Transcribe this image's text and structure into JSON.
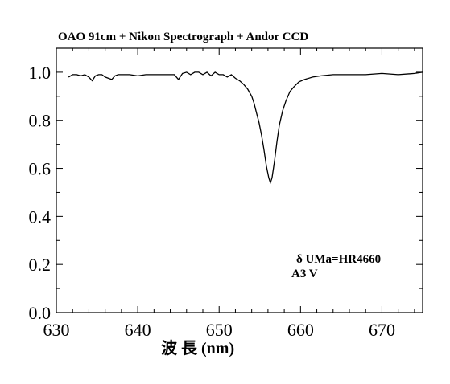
{
  "chart_data": {
    "type": "line",
    "title": "OAO 91cm + Nikon Spectrograph + Andor CCD",
    "xlabel": "波 長 (nm)",
    "ylabel": "",
    "xlim": [
      630,
      675
    ],
    "ylim": [
      0.0,
      1.1
    ],
    "x_ticks": [
      "630",
      "640",
      "650",
      "660",
      "670"
    ],
    "y_ticks": [
      "0.0",
      "0.2",
      "0.4",
      "0.6",
      "0.8",
      "1.0"
    ],
    "annotation_lines": [
      "δ UMa=HR4660",
      "A3 V"
    ],
    "grid": false,
    "line_color": "#000000",
    "series": [
      {
        "x": [
          631.5,
          632.0,
          632.5,
          633.0,
          633.5,
          634.0,
          634.4,
          634.8,
          635.2,
          635.6,
          636.0,
          636.4,
          636.8,
          637.2,
          637.6,
          638.0,
          639.0,
          640.0,
          641.0,
          642.0,
          643.0,
          644.0,
          644.5,
          645.0,
          645.5,
          646.0,
          646.5,
          647.0,
          647.5,
          648.0,
          648.5,
          649.0,
          649.5,
          650.0,
          650.5,
          651.0,
          651.5,
          652.0,
          652.5,
          653.0,
          653.5,
          654.0,
          654.3,
          654.6,
          654.9,
          655.2,
          655.5,
          655.8,
          656.1,
          656.3,
          656.5,
          656.8,
          657.1,
          657.4,
          657.8,
          658.2,
          658.7,
          659.2,
          659.8,
          660.5,
          661.5,
          662.5,
          664.0,
          666.0,
          668.0,
          670.0,
          672.0,
          674.0,
          675.0
        ],
        "y": [
          0.98,
          0.99,
          0.99,
          0.985,
          0.99,
          0.98,
          0.965,
          0.985,
          0.99,
          0.99,
          0.98,
          0.975,
          0.97,
          0.985,
          0.99,
          0.99,
          0.99,
          0.985,
          0.99,
          0.99,
          0.99,
          0.99,
          0.99,
          0.97,
          0.995,
          1.0,
          0.99,
          1.0,
          1.0,
          0.99,
          1.0,
          0.985,
          1.0,
          0.99,
          0.99,
          0.98,
          0.99,
          0.975,
          0.965,
          0.95,
          0.93,
          0.9,
          0.87,
          0.83,
          0.79,
          0.74,
          0.68,
          0.61,
          0.56,
          0.54,
          0.56,
          0.63,
          0.71,
          0.78,
          0.84,
          0.88,
          0.92,
          0.94,
          0.96,
          0.97,
          0.98,
          0.985,
          0.99,
          0.99,
          0.99,
          0.995,
          0.99,
          0.995,
          1.0
        ]
      }
    ]
  }
}
